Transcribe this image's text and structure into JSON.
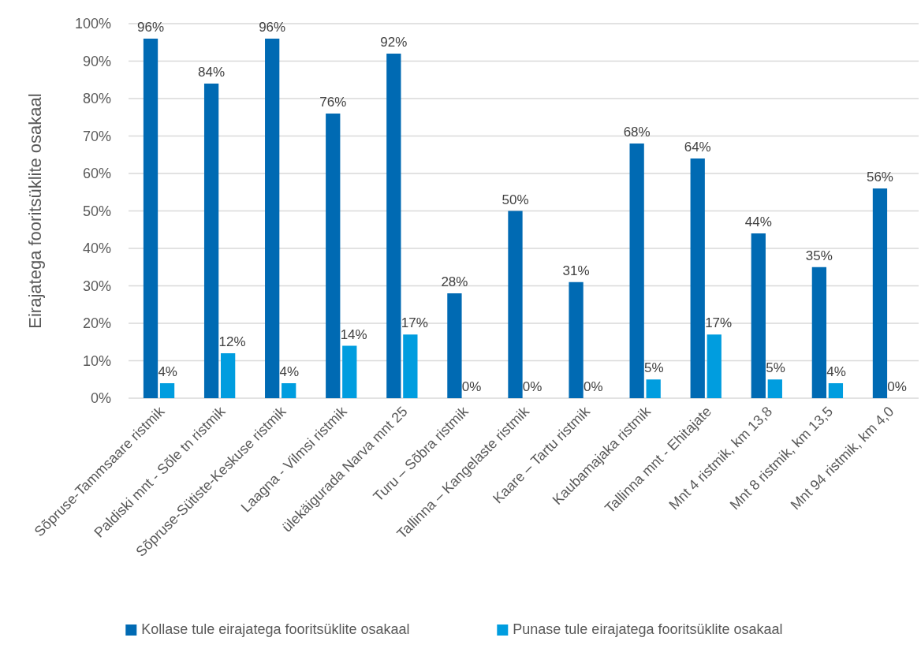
{
  "chart_data": {
    "type": "bar",
    "ylabel": "Eirajatega fooritsüklite osakaal",
    "categories": [
      "Sõpruse-Tammsaare ristmik",
      "Paldiski mnt - Sõle tn ristmik",
      "Sõpruse-Sütiste-Keskuse ristmik",
      "Laagna - Vilmsi ristmik",
      "ülekäigurada Narva mnt 25",
      "Turu – Sõbra ristmik",
      "Tallinna – Kangelaste ristmik",
      "Kaare – Tartu ristmik",
      "Kaubamajaka ristmik",
      "Tallinna mnt - Ehitajate",
      "Mnt 4 ristmik, km 13,8",
      "Mnt 8 ristmik, km 13,5",
      "Mnt 94 ristmik, km 4,0"
    ],
    "series": [
      {
        "name": "Kollase tule eirajatega fooritsüklite osakaal",
        "color": "#006ab3",
        "values": [
          96,
          84,
          96,
          76,
          92,
          28,
          50,
          31,
          68,
          64,
          44,
          35,
          56
        ],
        "value_labels": [
          "96%",
          "84%",
          "96%",
          "76%",
          "92%",
          "28%",
          "50%",
          "31%",
          "68%",
          "64%",
          "44%",
          "35%",
          "56%"
        ]
      },
      {
        "name": "Punase tule eirajatega fooritsüklite osakaal",
        "color": "#009ddf",
        "values": [
          4,
          12,
          4,
          14,
          17,
          0,
          0,
          0,
          5,
          17,
          5,
          4,
          0
        ],
        "value_labels": [
          "4%",
          "12%",
          "4%",
          "14%",
          "17%",
          "0%",
          "0%",
          "0%",
          "5%",
          "17%",
          "5%",
          "4%",
          "0%"
        ]
      }
    ],
    "ylim": [
      0,
      100
    ],
    "yticks": [
      {
        "value": 0,
        "label": "0%"
      },
      {
        "value": 10,
        "label": "10%"
      },
      {
        "value": 20,
        "label": "20%"
      },
      {
        "value": 30,
        "label": "30%"
      },
      {
        "value": 40,
        "label": "40%"
      },
      {
        "value": 50,
        "label": "50%"
      },
      {
        "value": 60,
        "label": "60%"
      },
      {
        "value": 70,
        "label": "70%"
      },
      {
        "value": 80,
        "label": "80%"
      },
      {
        "value": 90,
        "label": "90%"
      },
      {
        "value": 100,
        "label": "100%"
      }
    ],
    "grid": "y",
    "legend": "bottom"
  }
}
